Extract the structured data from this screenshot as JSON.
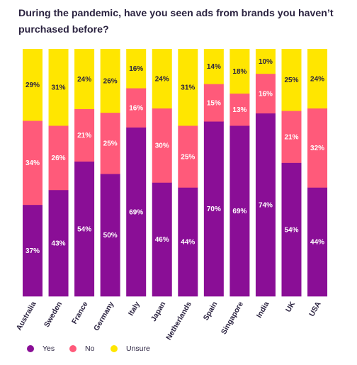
{
  "title": "During the pandemic, have you seen ads from brands you haven’t purchased before?",
  "colors": {
    "yes": "#8a0e96",
    "no": "#ff5a7a",
    "unsure": "#ffe600"
  },
  "legend": {
    "yes": "Yes",
    "no": "No",
    "unsure": "Unsure"
  },
  "chart_data": {
    "type": "bar",
    "stacked": true,
    "orientation": "vertical",
    "title": "During the pandemic, have you seen ads from brands you haven’t purchased before?",
    "categories": [
      "Australia",
      "Sweden",
      "France",
      "Germany",
      "Italy",
      "Japan",
      "Netherlands",
      "Spain",
      "Singapore",
      "India",
      "UK",
      "USA"
    ],
    "series": [
      {
        "name": "Yes",
        "values": [
          37,
          43,
          54,
          50,
          69,
          46,
          44,
          70,
          69,
          74,
          54,
          44
        ]
      },
      {
        "name": "No",
        "values": [
          34,
          26,
          21,
          25,
          16,
          30,
          25,
          15,
          13,
          16,
          21,
          32
        ]
      },
      {
        "name": "Unsure",
        "values": [
          29,
          31,
          24,
          26,
          16,
          24,
          31,
          14,
          18,
          10,
          25,
          24
        ]
      }
    ],
    "value_suffix": "%",
    "legend_position": "bottom-left",
    "grid": false
  }
}
